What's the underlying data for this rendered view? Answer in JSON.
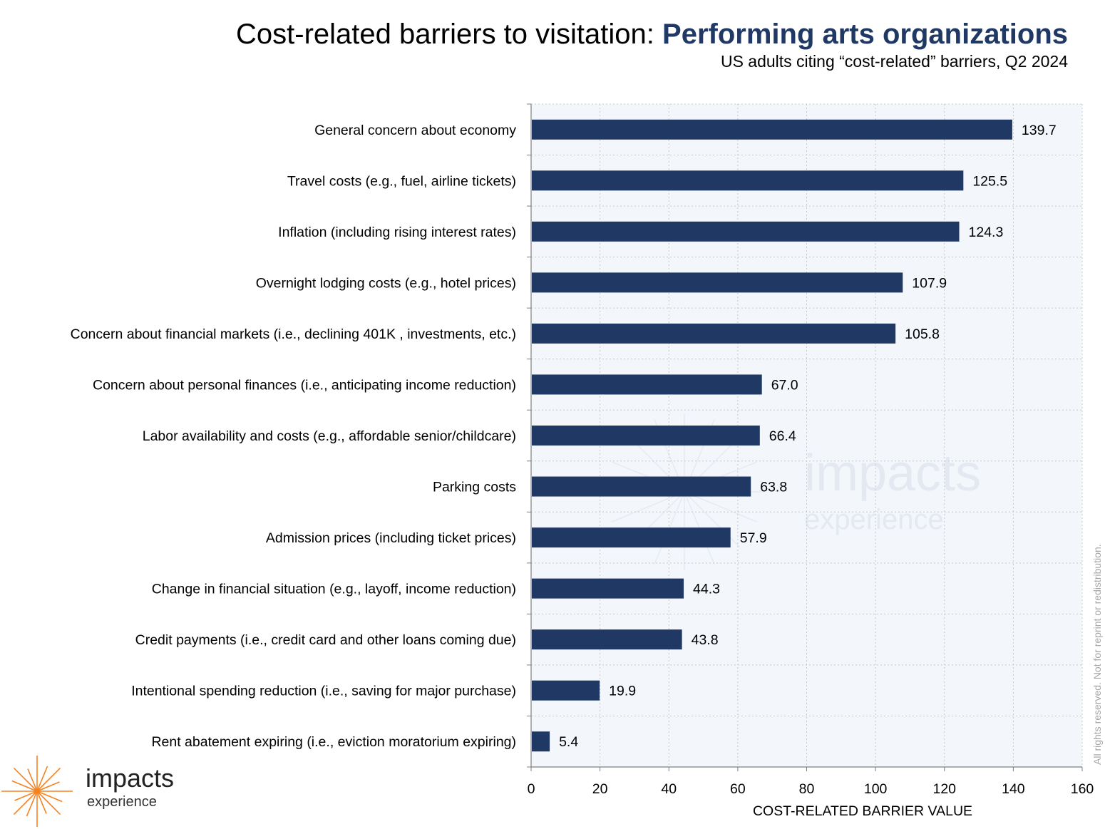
{
  "header": {
    "title_main": "Cost-related barriers to visitation: ",
    "title_highlight": "Performing arts organizations",
    "subtitle": "US adults citing “cost-related” barriers, Q2 2024"
  },
  "chart_data": {
    "type": "bar",
    "orientation": "horizontal",
    "title": "Cost-related barriers to visitation: Performing arts organizations",
    "subtitle": "US adults citing “cost-related” barriers, Q2 2024",
    "xlabel": "COST-RELATED BARRIER VALUE",
    "ylabel": "",
    "xlim": [
      0,
      160
    ],
    "x_ticks": [
      0,
      20,
      40,
      60,
      80,
      100,
      120,
      140,
      160
    ],
    "grid": true,
    "bar_color": "#203864",
    "categories": [
      "General concern about economy",
      "Travel costs (e.g., fuel, airline tickets)",
      "Inflation (including rising interest rates)",
      "Overnight lodging costs (e.g., hotel prices)",
      "Concern about financial markets (i.e.,  declining 401K , investments, etc.)",
      "Concern about personal finances (i.e., anticipating income reduction)",
      "Labor availability and costs (e.g., affordable senior/childcare)",
      "Parking costs",
      "Admission prices (including ticket prices)",
      "Change in financial situation (e.g., layoff, income reduction)",
      "Credit payments (i.e., credit card and other loans coming due)",
      "Intentional spending reduction (i.e., saving for major purchase)",
      "Rent abatement expiring (i.e., eviction moratorium expiring)"
    ],
    "values": [
      139.7,
      125.5,
      124.3,
      107.9,
      105.8,
      67.0,
      66.4,
      63.8,
      57.9,
      44.3,
      43.8,
      19.9,
      5.4
    ],
    "value_labels": [
      "139.7",
      "125.5",
      "124.3",
      "107.9",
      "105.8",
      "67.0",
      "66.4",
      "63.8",
      "57.9",
      "44.3",
      "43.8",
      "19.9",
      "5.4"
    ]
  },
  "watermark": {
    "line1": "impacts",
    "line2": "experience"
  },
  "logo": {
    "line1": "impacts",
    "line2": "experience",
    "accent_color": "#f58220"
  },
  "footer": {
    "rights": "All rights reserved. Not for reprint or redistribution."
  }
}
